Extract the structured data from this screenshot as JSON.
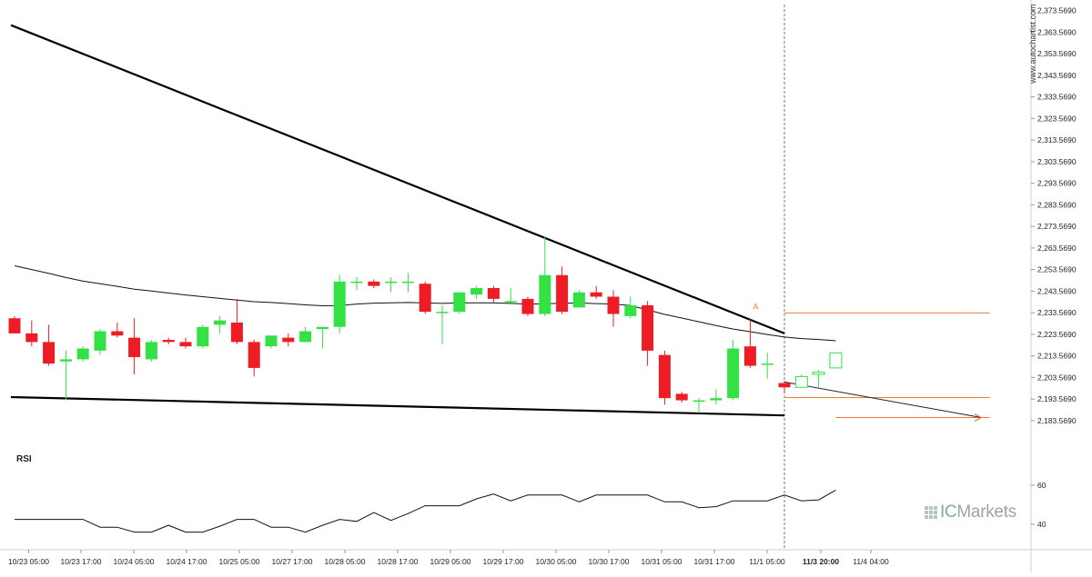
{
  "watermark": "www.autochartist.com",
  "logo_text_prefix": "IC",
  "logo_text_suffix": "Markets",
  "rsi_label": "RSI",
  "colors": {
    "bull": "#33e144",
    "bear": "#ee1c24",
    "pattern": "#000000",
    "level": "#f07a30",
    "grid": "#d7d7d7",
    "axis_text": "#222222"
  },
  "chart_data": [
    {
      "type": "candlestick",
      "title": "",
      "xlabel": "",
      "ylabel": "",
      "x_ticks": [
        "10/23 05:00",
        "10/23 17:00",
        "10/24 05:00",
        "10/24 17:00",
        "10/25 05:00",
        "10/27 17:00",
        "10/28 05:00",
        "10/28 17:00",
        "10/29 05:00",
        "10/29 17:00",
        "10/30 05:00",
        "10/30 17:00",
        "10/31 05:00",
        "10/31 17:00",
        "11/1 05:00",
        "11/3 20:00",
        "11/4 04:00"
      ],
      "y_ticks": [
        "2,373.5690",
        "2,363.5690",
        "2,353.5690",
        "2,343.5690",
        "2,333.5690",
        "2,323.5690",
        "2,313.5690",
        "2,303.5690",
        "2,293.5690",
        "2,283.5690",
        "2,273.5690",
        "2,263.5690",
        "2,253.5690",
        "2,243.5690",
        "2,233.5690",
        "2,223.5690",
        "2,213.5690",
        "2,203.5690",
        "2,193.5690",
        "2,183.5690"
      ],
      "ylim": [
        2180.6,
        2375.5
      ],
      "grid": false,
      "candles": [
        {
          "o": 2231.0,
          "h": 2232.0,
          "l": 2224.0,
          "c": 2224.0
        },
        {
          "o": 2224.0,
          "h": 2230.0,
          "l": 2218.0,
          "c": 2220.0
        },
        {
          "o": 2220.0,
          "h": 2228.0,
          "l": 2209.0,
          "c": 2210.0
        },
        {
          "o": 2211.0,
          "h": 2216.0,
          "l": 2193.0,
          "c": 2212.0
        },
        {
          "o": 2212.0,
          "h": 2218.0,
          "l": 2211.0,
          "c": 2217.0
        },
        {
          "o": 2216.0,
          "h": 2226.0,
          "l": 2214.0,
          "c": 2225.0
        },
        {
          "o": 2225.0,
          "h": 2229.0,
          "l": 2222.0,
          "c": 2223.0
        },
        {
          "o": 2222.0,
          "h": 2231.0,
          "l": 2205.0,
          "c": 2213.0
        },
        {
          "o": 2212.0,
          "h": 2221.0,
          "l": 2211.0,
          "c": 2220.0
        },
        {
          "o": 2221.0,
          "h": 2222.0,
          "l": 2219.0,
          "c": 2220.0
        },
        {
          "o": 2220.0,
          "h": 2222.0,
          "l": 2217.0,
          "c": 2218.0
        },
        {
          "o": 2218.0,
          "h": 2228.0,
          "l": 2217.0,
          "c": 2227.0
        },
        {
          "o": 2228.0,
          "h": 2232.0,
          "l": 2224.0,
          "c": 2230.0
        },
        {
          "o": 2229.0,
          "h": 2240.0,
          "l": 2219.0,
          "c": 2220.0
        },
        {
          "o": 2220.0,
          "h": 2221.0,
          "l": 2204.0,
          "c": 2208.0
        },
        {
          "o": 2218.0,
          "h": 2223.0,
          "l": 2217.0,
          "c": 2223.0
        },
        {
          "o": 2222.0,
          "h": 2224.0,
          "l": 2218.0,
          "c": 2220.0
        },
        {
          "o": 2220.0,
          "h": 2227.0,
          "l": 2220.0,
          "c": 2225.0
        },
        {
          "o": 2226.0,
          "h": 2227.0,
          "l": 2217.0,
          "c": 2227.0
        },
        {
          "o": 2227.0,
          "h": 2251.0,
          "l": 2224.0,
          "c": 2248.0
        },
        {
          "o": 2248.0,
          "h": 2250.0,
          "l": 2244.0,
          "c": 2248.0
        },
        {
          "o": 2248.0,
          "h": 2249.0,
          "l": 2245.0,
          "c": 2246.0
        },
        {
          "o": 2248.0,
          "h": 2250.0,
          "l": 2243.0,
          "c": 2248.0
        },
        {
          "o": 2248.0,
          "h": 2252.0,
          "l": 2243.0,
          "c": 2248.0
        },
        {
          "o": 2247.0,
          "h": 2248.0,
          "l": 2233.0,
          "c": 2234.0
        },
        {
          "o": 2234.0,
          "h": 2237.0,
          "l": 2219.0,
          "c": 2234.0
        },
        {
          "o": 2234.0,
          "h": 2243.0,
          "l": 2233.0,
          "c": 2243.0
        },
        {
          "o": 2242.0,
          "h": 2246.0,
          "l": 2240.0,
          "c": 2245.0
        },
        {
          "o": 2245.0,
          "h": 2246.0,
          "l": 2238.0,
          "c": 2240.0
        },
        {
          "o": 2239.0,
          "h": 2245.0,
          "l": 2238.0,
          "c": 2239.0
        },
        {
          "o": 2240.0,
          "h": 2241.0,
          "l": 2232.0,
          "c": 2233.0
        },
        {
          "o": 2233.0,
          "h": 2269.0,
          "l": 2232.0,
          "c": 2251.0
        },
        {
          "o": 2251.0,
          "h": 2255.0,
          "l": 2233.0,
          "c": 2234.0
        },
        {
          "o": 2236.0,
          "h": 2244.0,
          "l": 2236.0,
          "c": 2243.0
        },
        {
          "o": 2243.0,
          "h": 2246.0,
          "l": 2240.0,
          "c": 2241.0
        },
        {
          "o": 2241.0,
          "h": 2244.0,
          "l": 2227.0,
          "c": 2233.0
        },
        {
          "o": 2232.0,
          "h": 2241.0,
          "l": 2231.0,
          "c": 2237.0
        },
        {
          "o": 2237.0,
          "h": 2239.0,
          "l": 2209.0,
          "c": 2216.0
        },
        {
          "o": 2214.0,
          "h": 2216.0,
          "l": 2191.0,
          "c": 2194.0
        },
        {
          "o": 2196.0,
          "h": 2197.0,
          "l": 2192.0,
          "c": 2193.0
        },
        {
          "o": 2193.0,
          "h": 2194.0,
          "l": 2187.0,
          "c": 2193.0
        },
        {
          "o": 2193.0,
          "h": 2198.0,
          "l": 2191.0,
          "c": 2194.0
        },
        {
          "o": 2194.0,
          "h": 2221.0,
          "l": 2193.0,
          "c": 2217.0
        },
        {
          "o": 2218.0,
          "h": 2231.0,
          "l": 2208.0,
          "c": 2209.0
        },
        {
          "o": 2210.0,
          "h": 2215.0,
          "l": 2203.0,
          "c": 2210.0
        },
        {
          "o": 2201.0,
          "h": 2202.0,
          "l": 2196.0,
          "c": 2199.0
        },
        {
          "o": 2199.0,
          "h": 2205.0,
          "l": 2199.0,
          "c": 2204.0
        },
        {
          "o": 2205.0,
          "h": 2207.0,
          "l": 2199.0,
          "c": 2206.0
        },
        {
          "o": 2208.0,
          "h": 2215.0,
          "l": 2208.0,
          "c": 2215.0
        }
      ],
      "projected_from_index": 45,
      "moving_average": [
        2255.3,
        2253.6,
        2251.8,
        2249.9,
        2248.2,
        2247.0,
        2245.8,
        2244.5,
        2243.6,
        2242.7,
        2241.8,
        2241.0,
        2240.2,
        2239.4,
        2238.7,
        2238.3,
        2237.8,
        2237.2,
        2236.8,
        2236.9,
        2237.6,
        2238.0,
        2238.2,
        2238.3,
        2238.1,
        2237.9,
        2238.1,
        2238.2,
        2238.1,
        2237.9,
        2237.6,
        2237.7,
        2238.0,
        2238.1,
        2237.8,
        2237.6,
        2236.9,
        2234.9,
        2232.8,
        2231.1,
        2229.4,
        2227.6,
        2226.0,
        2224.8,
        2223.5,
        2222.3,
        2221.6,
        2221.2,
        2220.6
      ],
      "pattern_lines": [
        {
          "x0": 0,
          "y0": 2366.8,
          "x1": 45,
          "y1": 2224.0
        },
        {
          "x0": 0,
          "y0": 2194.5,
          "x1": 45,
          "y1": 2186.0
        }
      ],
      "levels": [
        {
          "from_index": 45,
          "to_index": 57,
          "value": 2233.5
        },
        {
          "from_index": 45,
          "to_index": 57,
          "value": 2194.3
        },
        {
          "from_index": 48,
          "to_index": 57,
          "value": 2185.0
        }
      ],
      "point_label": "A",
      "point_label_index": 43,
      "point_label_value": 2233.5,
      "forecast_line": {
        "x0": 45,
        "y0": 2201.5,
        "x1": 56.5,
        "y1": 2185.0
      },
      "current_time_index": 45
    },
    {
      "type": "line",
      "title": "RSI",
      "xlabel": "",
      "ylabel": "",
      "y_ticks": [
        "60",
        "40"
      ],
      "ylim": [
        33.7,
        72.6
      ],
      "values": [
        42.5,
        42.5,
        42.5,
        42.5,
        42.5,
        38.5,
        38.5,
        36.0,
        36.0,
        39.5,
        36.0,
        36.0,
        39.0,
        42.5,
        42.5,
        38.5,
        38.5,
        36.0,
        39.5,
        42.5,
        41.5,
        46.0,
        42.0,
        45.5,
        49.5,
        49.5,
        49.5,
        53.0,
        55.5,
        52.0,
        55.0,
        55.0,
        55.0,
        51.5,
        55.0,
        55.0,
        55.0,
        55.0,
        51.5,
        51.5,
        48.5,
        49.0,
        52.0,
        52.0,
        52.0,
        55.0,
        52.0,
        52.5,
        57.5
      ]
    }
  ]
}
